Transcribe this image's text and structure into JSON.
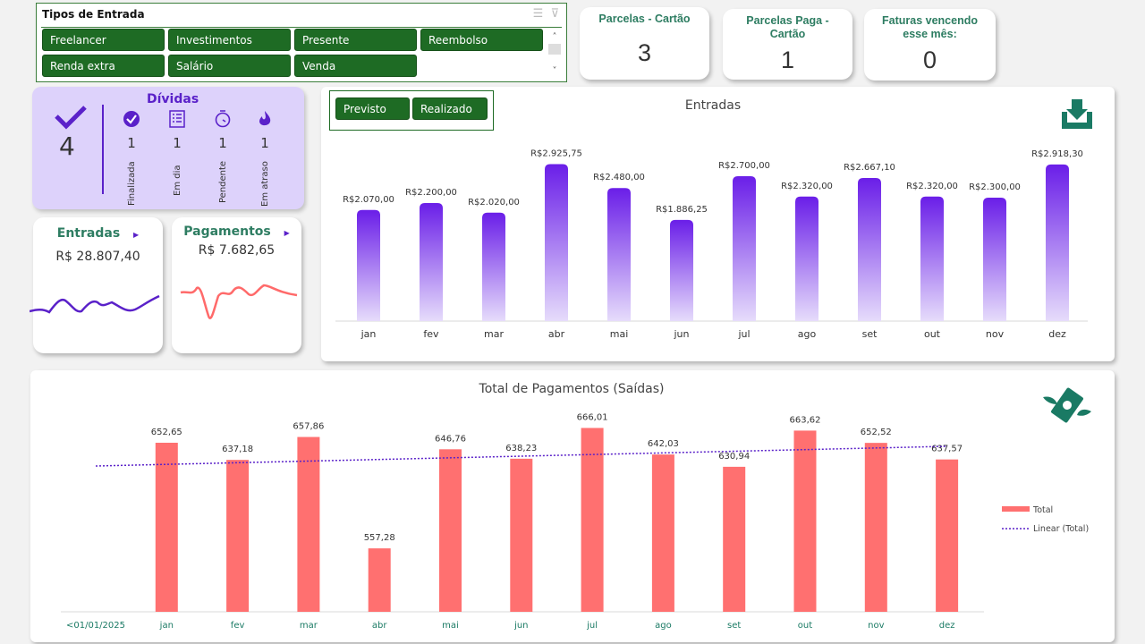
{
  "slicer": {
    "title": "Tipos de Entrada",
    "items": [
      "Freelancer",
      "Investimentos",
      "Presente",
      "Reembolso",
      "Renda extra",
      "Salário",
      "Venda"
    ]
  },
  "kpis": [
    {
      "label": "Parcelas - Cartão",
      "value": "3"
    },
    {
      "label": "Parcelas Paga - Cartão",
      "value": "1"
    },
    {
      "label": "Faturas vencendo esse mês:",
      "value": "0"
    }
  ],
  "dividas": {
    "title": "Dívidas",
    "total": "4",
    "items": [
      {
        "label": "Finalizada",
        "value": "1",
        "icon": "check-circle-icon"
      },
      {
        "label": "Em dia",
        "value": "1",
        "icon": "list-icon"
      },
      {
        "label": "Pendente",
        "value": "1",
        "icon": "stopwatch-icon"
      },
      {
        "label": "Em atraso",
        "value": "1",
        "icon": "fire-icon"
      }
    ]
  },
  "entradas_card": {
    "title": "Entradas",
    "amount": "R$ 28.807,40"
  },
  "pagamentos_card": {
    "title": "Pagamentos",
    "amount": "R$ 7.682,65"
  },
  "toggle": {
    "previsto": "Previsto",
    "realizado": "Realizado"
  },
  "colors": {
    "green": "#1e6b24",
    "purple": "#5a21c9",
    "red": "#ff7070",
    "teal": "#1a7a64"
  },
  "chart_data": [
    {
      "type": "bar",
      "title": "Entradas",
      "categories": [
        "jan",
        "fev",
        "mar",
        "abr",
        "mai",
        "jun",
        "jul",
        "ago",
        "set",
        "out",
        "nov",
        "dez"
      ],
      "values": [
        2070,
        2200,
        2020,
        2925.75,
        2480,
        1886.25,
        2700,
        2320,
        2667.1,
        2320,
        2300,
        2918.3
      ],
      "labels": [
        "R$2.070,00",
        "R$2.200,00",
        "R$2.020,00",
        "R$2.925,75",
        "R$2.480,00",
        "R$1.886,25",
        "R$2.700,00",
        "R$2.320,00",
        "R$2.667,10",
        "R$2.320,00",
        "R$2.300,00",
        "R$2.918,30"
      ],
      "ylim": [
        0,
        3000
      ]
    },
    {
      "type": "bar",
      "title": "Total de Pagamentos (Saídas)",
      "categories": [
        "<01/01/2025",
        "jan",
        "fev",
        "mar",
        "abr",
        "mai",
        "jun",
        "jul",
        "ago",
        "set",
        "out",
        "nov",
        "dez"
      ],
      "values": [
        null,
        652.65,
        637.18,
        657.86,
        557.28,
        646.76,
        638.23,
        666.01,
        642.03,
        630.94,
        663.62,
        652.52,
        637.57
      ],
      "labels": [
        "",
        "652,65",
        "637,18",
        "657,86",
        "557,28",
        "646,76",
        "638,23",
        "666,01",
        "642,03",
        "630,94",
        "663,62",
        "652,52",
        "637,57"
      ],
      "ylim": [
        500,
        680
      ],
      "legend": [
        "Total",
        "Linear (Total)"
      ],
      "legend_position": "right"
    }
  ]
}
